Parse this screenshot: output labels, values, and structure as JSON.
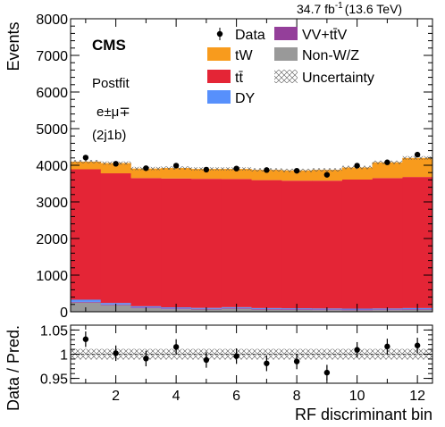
{
  "chart_data": {
    "type": "bar",
    "stacked": true,
    "header": {
      "lumi_text": "34.7 fb",
      "lumi_exponent": "-1",
      "energy_text": "(13.6 TeV)",
      "experiment": "CMS",
      "stage": "Postfit",
      "channel": "e±μ∓",
      "region": "(2j1b)"
    },
    "xlabel": "RF discriminant bin",
    "ylabel": "Events",
    "ratio_ylabel": "Data / Pred.",
    "xlim": [
      0.5,
      12.5
    ],
    "ylim": [
      0,
      8000
    ],
    "ratio_ylim": [
      0.94,
      1.06
    ],
    "x_ticks": [
      2,
      4,
      6,
      8,
      10,
      12
    ],
    "y_ticks": [
      0,
      1000,
      2000,
      3000,
      4000,
      5000,
      6000,
      7000,
      8000
    ],
    "ratio_y_ticks": [
      0.95,
      1,
      1.05
    ],
    "bins": [
      1,
      2,
      3,
      4,
      5,
      6,
      7,
      8,
      9,
      10,
      11,
      12
    ],
    "legend": [
      {
        "name": "Data",
        "kind": "marker"
      },
      {
        "name": "VV+tt̄V",
        "kind": "fill",
        "color": "#943f9a"
      },
      {
        "name": "tW",
        "kind": "fill",
        "color": "#f89b1d"
      },
      {
        "name": "Non-W/Z",
        "kind": "fill",
        "color": "#999999"
      },
      {
        "name": "tt̄",
        "kind": "fill",
        "color": "#e42536"
      },
      {
        "name": "Uncertainty",
        "kind": "hatch"
      },
      {
        "name": "DY",
        "kind": "fill",
        "color": "#5790fc"
      }
    ],
    "series": [
      {
        "name": "Non-W/Z",
        "color": "#999999",
        "values": [
          250,
          180,
          100,
          70,
          60,
          80,
          55,
          50,
          45,
          40,
          45,
          50
        ]
      },
      {
        "name": "VV+tt̄V",
        "color": "#943f9a",
        "values": [
          20,
          20,
          20,
          20,
          20,
          20,
          20,
          20,
          20,
          20,
          20,
          20
        ]
      },
      {
        "name": "DY",
        "color": "#5790fc",
        "values": [
          60,
          40,
          30,
          30,
          25,
          25,
          25,
          25,
          25,
          25,
          25,
          30
        ]
      },
      {
        "name": "tt̄",
        "color": "#e42536",
        "values": [
          3560,
          3540,
          3500,
          3520,
          3525,
          3500,
          3495,
          3485,
          3490,
          3525,
          3560,
          3580
        ]
      },
      {
        "name": "tW",
        "color": "#f89b1d",
        "values": [
          210,
          280,
          260,
          285,
          270,
          275,
          280,
          280,
          295,
          330,
          430,
          520
        ]
      }
    ],
    "total_uncertainty": [
      45,
      45,
      45,
      45,
      45,
      45,
      45,
      45,
      45,
      45,
      45,
      50
    ],
    "data": {
      "name": "Data",
      "values": [
        4210,
        4040,
        3920,
        3990,
        3880,
        3910,
        3870,
        3850,
        3740,
        3990,
        4080,
        4290
      ],
      "errors": [
        65,
        64,
        63,
        63,
        62,
        63,
        62,
        62,
        61,
        63,
        64,
        65
      ]
    },
    "ratio": {
      "values": [
        1.031,
        1.002,
        0.991,
        1.015,
        0.988,
        0.996,
        0.981,
        0.985,
        0.962,
        1.009,
        1.016,
        1.018
      ],
      "errors": [
        0.016,
        0.016,
        0.016,
        0.016,
        0.016,
        0.016,
        0.016,
        0.016,
        0.016,
        0.016,
        0.016,
        0.016
      ],
      "uncertainty": 0.011
    }
  }
}
